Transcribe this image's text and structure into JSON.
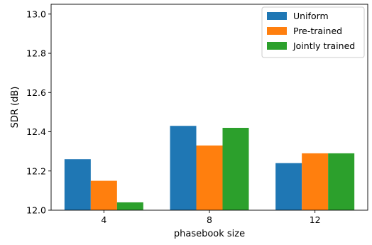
{
  "chart_data": {
    "type": "bar",
    "title": "",
    "xlabel": "phasebook size",
    "ylabel": "SDR (dB)",
    "categories": [
      "4",
      "8",
      "12"
    ],
    "series": [
      {
        "name": "Uniform",
        "color": "#1f77b4",
        "values": [
          12.26,
          12.43,
          12.24
        ]
      },
      {
        "name": "Pre-trained",
        "color": "#ff7f0e",
        "values": [
          12.15,
          12.33,
          12.29
        ]
      },
      {
        "name": "Jointly trained",
        "color": "#2ca02c",
        "values": [
          12.04,
          12.42,
          12.29
        ]
      }
    ],
    "ylim": [
      12.0,
      13.05
    ],
    "yticks": [
      "12.0",
      "12.2",
      "12.4",
      "12.6",
      "12.8",
      "13.0"
    ],
    "grid": false,
    "legend_position": "top-right"
  }
}
